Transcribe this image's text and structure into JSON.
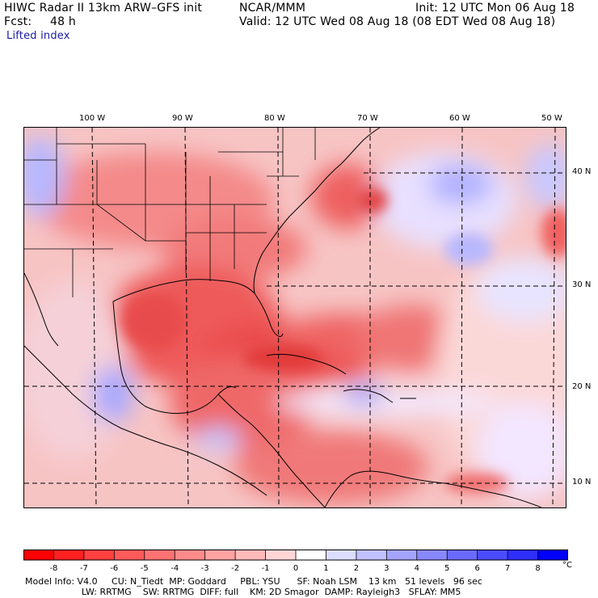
{
  "header": {
    "title": "HIWC Radar II 13km ARW–GFS init",
    "source": "NCAR/MMM",
    "init": "Init: 12 UTC Mon 06 Aug 18",
    "fcst_label": "Fcst:",
    "fcst_value": "48 h",
    "valid": "Valid: 12 UTC Wed 08 Aug 18 (08 EDT Wed 08 Aug 18)",
    "field": "Lifted index"
  },
  "map": {
    "longitude_labels": [
      "100 W",
      "90 W",
      "80 W",
      "70 W",
      "60 W",
      "50 W"
    ],
    "latitude_labels": [
      "40 N",
      "30 N",
      "20 N",
      "10 N"
    ]
  },
  "colorbar": {
    "unit": "°C",
    "tick_labels": [
      "-8",
      "-7",
      "-6",
      "-5",
      "-4",
      "-3",
      "-2",
      "-1",
      "0",
      "1",
      "2",
      "3",
      "4",
      "5",
      "6",
      "7",
      "8"
    ],
    "colors": [
      "#ff0000",
      "#ff2020",
      "#ff4040",
      "#ff5a5a",
      "#ff7272",
      "#ff8a8a",
      "#ffa2a2",
      "#ffbaba",
      "#ffd6d6",
      "#ffffff",
      "#dcdcff",
      "#c0c0ff",
      "#a4a4ff",
      "#8888ff",
      "#6a6aff",
      "#4c4cff",
      "#2e2eff",
      "#0000ff"
    ]
  },
  "footer": {
    "line1": "Model Info: V4.0     CU: N_Tiedt  MP: Goddard     PBL: YSU      SF: Noah LSM    13 km   51 levels   96 sec",
    "line2": "                    LW: RRTMG    SW: RRTMG  DIFF: full    KM: 2D Smagor  DAMP: Rayleigh3   SFLAY: MM5"
  },
  "colors": {
    "instability": "#ff4d4d",
    "stable": "#6a6aff",
    "neutral": "#ffffff"
  }
}
